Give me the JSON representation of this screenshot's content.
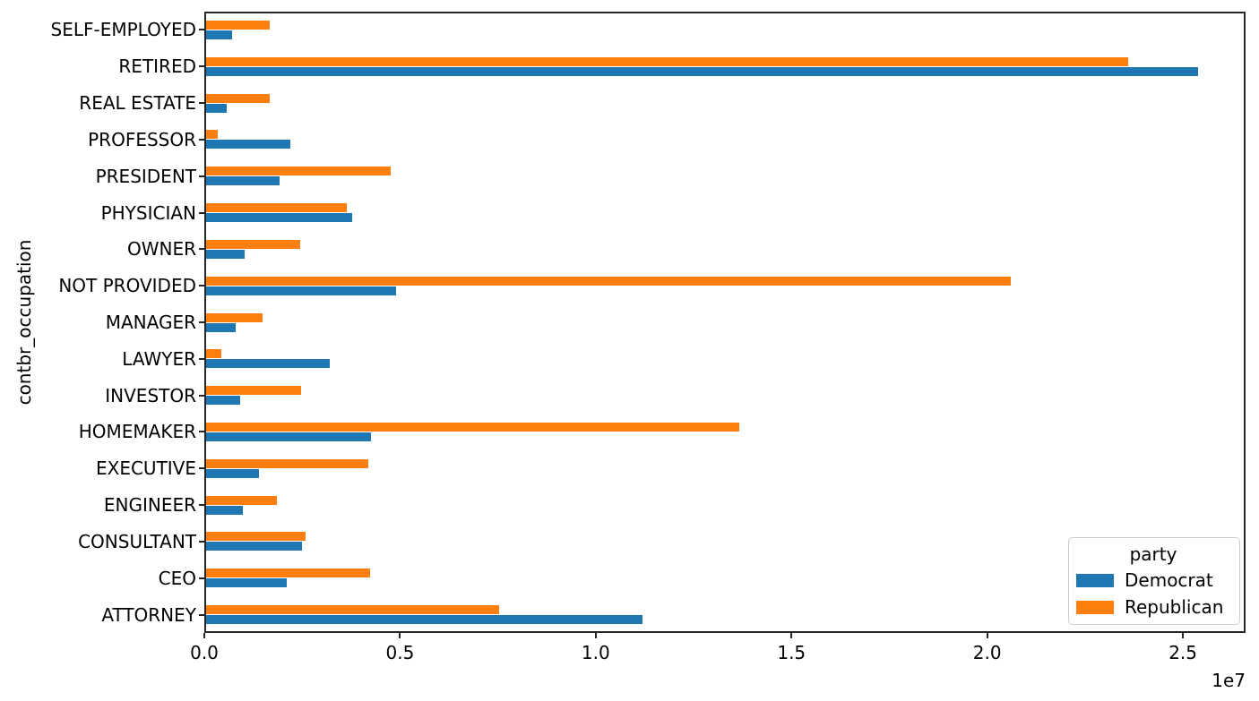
{
  "chart_data": {
    "type": "bar",
    "orientation": "horizontal",
    "title": "",
    "xlabel": "",
    "ylabel": "contbr_occupation",
    "x_tick_labels": [
      "0.0",
      "0.5",
      "1.0",
      "1.5",
      "2.0",
      "2.5"
    ],
    "x_offset_label": "1e7",
    "xlim": [
      0,
      26600000
    ],
    "grid": false,
    "categories": [
      "SELF-EMPLOYED",
      "RETIRED",
      "REAL ESTATE",
      "PROFESSOR",
      "PRESIDENT",
      "PHYSICIAN",
      "OWNER",
      "NOT PROVIDED",
      "MANAGER",
      "LAWYER",
      "INVESTOR",
      "HOMEMAKER",
      "EXECUTIVE",
      "ENGINEER",
      "CONSULTANT",
      "CEO",
      "ATTORNEY"
    ],
    "series": [
      {
        "name": "Democrat",
        "color": "#1f77b4",
        "values": [
          660000,
          25330000,
          530000,
          2150000,
          1880000,
          3720000,
          980000,
          4850000,
          750000,
          3160000,
          870000,
          4220000,
          1350000,
          940000,
          2440000,
          2050000,
          11140000
        ]
      },
      {
        "name": "Republican",
        "color": "#ff7f0e",
        "values": [
          1620000,
          23550000,
          1620000,
          300000,
          4720000,
          3590000,
          2400000,
          20560000,
          1440000,
          390000,
          2420000,
          13630000,
          4150000,
          1810000,
          2540000,
          4200000,
          7480000
        ]
      }
    ],
    "legend": {
      "title": "party",
      "position": "lower right"
    }
  }
}
